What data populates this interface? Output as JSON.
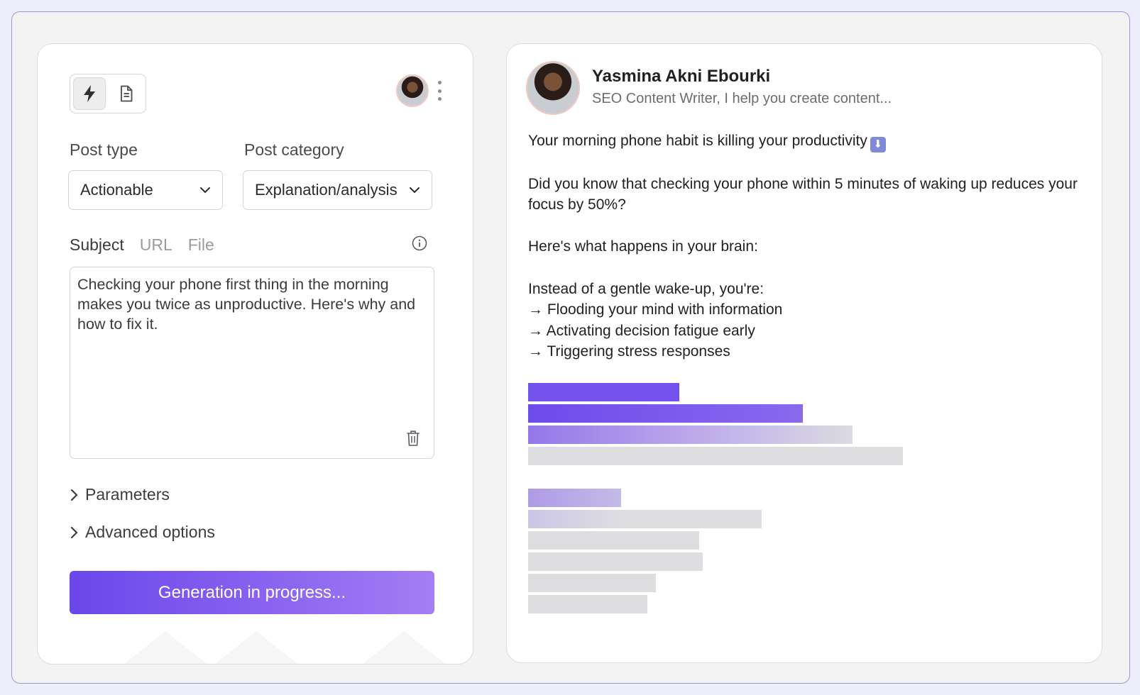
{
  "left_panel": {
    "mode_icons": [
      "lightning-icon",
      "document-icon"
    ],
    "post_type": {
      "label": "Post type",
      "value": "Actionable"
    },
    "post_category": {
      "label": "Post category",
      "value": "Explanation/analysis"
    },
    "source_tabs": [
      "Subject",
      "URL",
      "File"
    ],
    "subject_text": "Checking your phone first thing in the morning makes you twice as unproductive. Here's why and how to fix it.",
    "parameters_label": "Parameters",
    "advanced_label": "Advanced options",
    "generate_label": "Generation in progress..."
  },
  "preview": {
    "author_name": "Yasmina Akni Ebourki",
    "author_headline": "SEO Content Writer, I help you create content...",
    "hook": "Your morning phone habit is killing your productivity",
    "hook_emoji": "⬇",
    "para1": "Did you know that checking your phone within 5 minutes of waking up reduces your focus by 50%?",
    "para2": "Here's what happens in your brain:",
    "para3_intro": "Instead of a gentle wake-up, you're:",
    "bullets": [
      "→ Flooding your mind with information",
      "→ Activating decision fatigue early",
      "→ Triggering stress responses"
    ]
  },
  "colors": {
    "accent": "#6b47ea",
    "accent_light": "#a37ef3",
    "skeleton": "#dedee0"
  }
}
